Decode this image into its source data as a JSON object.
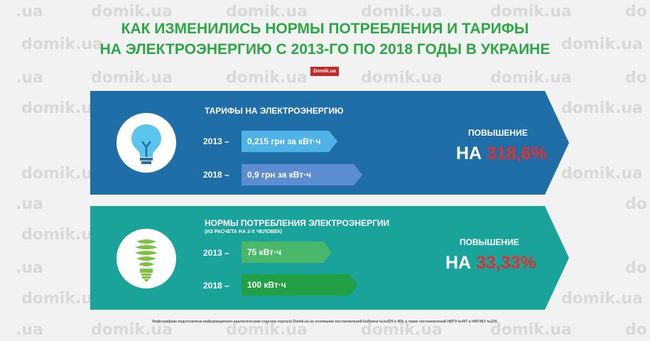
{
  "watermark": "domik.ua",
  "watermark_short": ".ua",
  "watermark_cut": "do",
  "title": {
    "line1": "КАК ИЗМЕНИЛИСЬ НОРМЫ ПОТРЕБЛЕНИЯ И ТАРИФЫ",
    "line2": "НА ЭЛЕКТРОЭНЕРГИЮ С 2013-ГО ПО 2018 ГОДЫ В УКРАИНЕ"
  },
  "logo": "Domik.ua",
  "tariffs": {
    "title": "ТАРИФЫ НА ЭЛЕКТРОЭНЕРГИЮ",
    "icon": "lightbulb-icon",
    "rows": [
      {
        "year": "2013 –",
        "value": "0,215 грн за кВт·ч"
      },
      {
        "year": "2018 –",
        "value": "0,9 грн за кВт·ч"
      }
    ],
    "increase_label": "ПОВЫШЕНИЕ",
    "increase_prefix": "НА",
    "increase_value": "318,6%"
  },
  "norms": {
    "title": "НОРМЫ ПОТРЕБЛЕНИЯ ЭЛЕКТРОЭНЕРГИИ",
    "subtitle": "(ИЗ РАСЧЕТА НА 2-Х ЧЕЛОВЕК)",
    "icon": "energy-saving-lamp-icon",
    "rows": [
      {
        "year": "2013 –",
        "value": "75 кВт·ч"
      },
      {
        "year": "2018 –",
        "value": "100 кВт·ч"
      }
    ],
    "increase_label": "ПОВЫШЕНИЕ",
    "increase_prefix": "НА",
    "increase_value": "33,33%"
  },
  "footer": "Инфографика подготовлена информационно-аналитическим отделом портала Domik.ua на основании постановлений Кабмина №№829 и 409, а также постановлений НКРЭ №497 и НКРЭКУ №220.",
  "colors": {
    "title_green": "#2ca646",
    "tariff_panel": "#1f6ea7",
    "norm_panel": "#1aa39a",
    "tag_light_blue": "#4fb3e8",
    "tag_mid_blue": "#5b8dd0",
    "tag_light_green": "#49b86a",
    "tag_green": "#21a046",
    "accent_red": "#e03131",
    "bulb_blue": "#5bc4ec",
    "lamp_green": "#7dc242"
  }
}
